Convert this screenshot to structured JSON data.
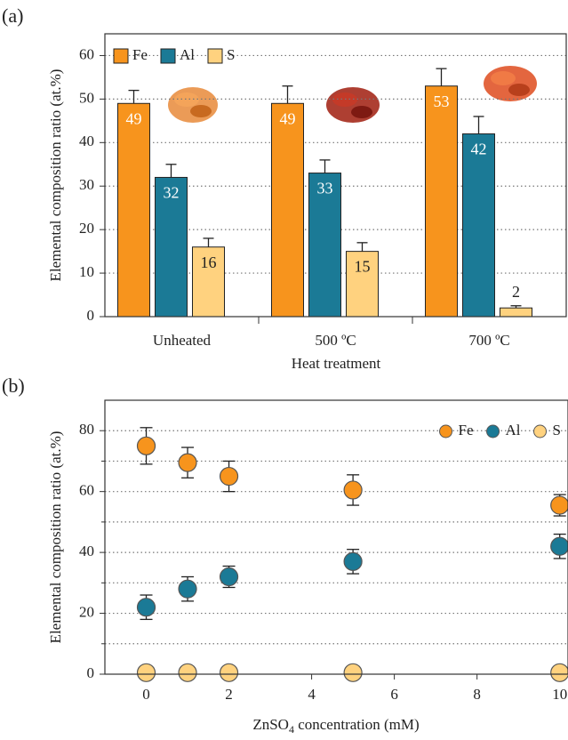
{
  "chart_data": [
    {
      "type": "bar",
      "panel_label": "(a)",
      "ylabel": "Elemental composition ratio (at.%)",
      "xlabel": "Heat treatment",
      "categories": [
        "Unheated",
        "500 ºC",
        "700 ºC"
      ],
      "series": [
        {
          "name": "Fe",
          "color": "#f7941d",
          "label_color": "#ffffff",
          "values": [
            49,
            49,
            53
          ],
          "errors": [
            3,
            4,
            4
          ]
        },
        {
          "name": "Al",
          "color": "#1b7a96",
          "label_color": "#ffffff",
          "values": [
            32,
            33,
            42
          ],
          "errors": [
            3,
            3,
            4
          ]
        },
        {
          "name": "S",
          "color": "#ffd27f",
          "label_color": "#222222",
          "values": [
            16,
            15,
            2
          ],
          "errors": [
            2,
            2,
            0.5
          ]
        }
      ],
      "ylim": [
        0,
        65
      ],
      "yticks": [
        0,
        10,
        20,
        30,
        40,
        50,
        60
      ],
      "grid": true,
      "legend": "top-left"
    },
    {
      "type": "scatter",
      "panel_label": "(b)",
      "ylabel": "Elemental composition ratio (at.%)",
      "xlabel": [
        "ZnSO",
        "4",
        " concentration (mM)"
      ],
      "x": [
        0,
        1,
        2,
        5,
        10
      ],
      "series": [
        {
          "name": "Fe",
          "color": "#f7941d",
          "values": [
            75,
            69.5,
            65,
            60.5,
            55.5
          ],
          "errors": [
            6,
            5,
            5,
            5,
            3.5
          ]
        },
        {
          "name": "Al",
          "color": "#1b7a96",
          "values": [
            22,
            28,
            32,
            37,
            42
          ],
          "errors": [
            4,
            4,
            3.5,
            4,
            4
          ]
        },
        {
          "name": "S",
          "color": "#ffd27f",
          "values": [
            0.5,
            0.5,
            0.5,
            0.5,
            0.5
          ]
        }
      ],
      "xlim": [
        -1,
        10.2
      ],
      "xticks": [
        0,
        2,
        4,
        6,
        8,
        10
      ],
      "ylim": [
        0,
        90
      ],
      "yticks": [
        0,
        20,
        40,
        60,
        80
      ],
      "minor_yticks": [
        10,
        30,
        50,
        70
      ],
      "grid": true,
      "legend": "top-right"
    }
  ]
}
